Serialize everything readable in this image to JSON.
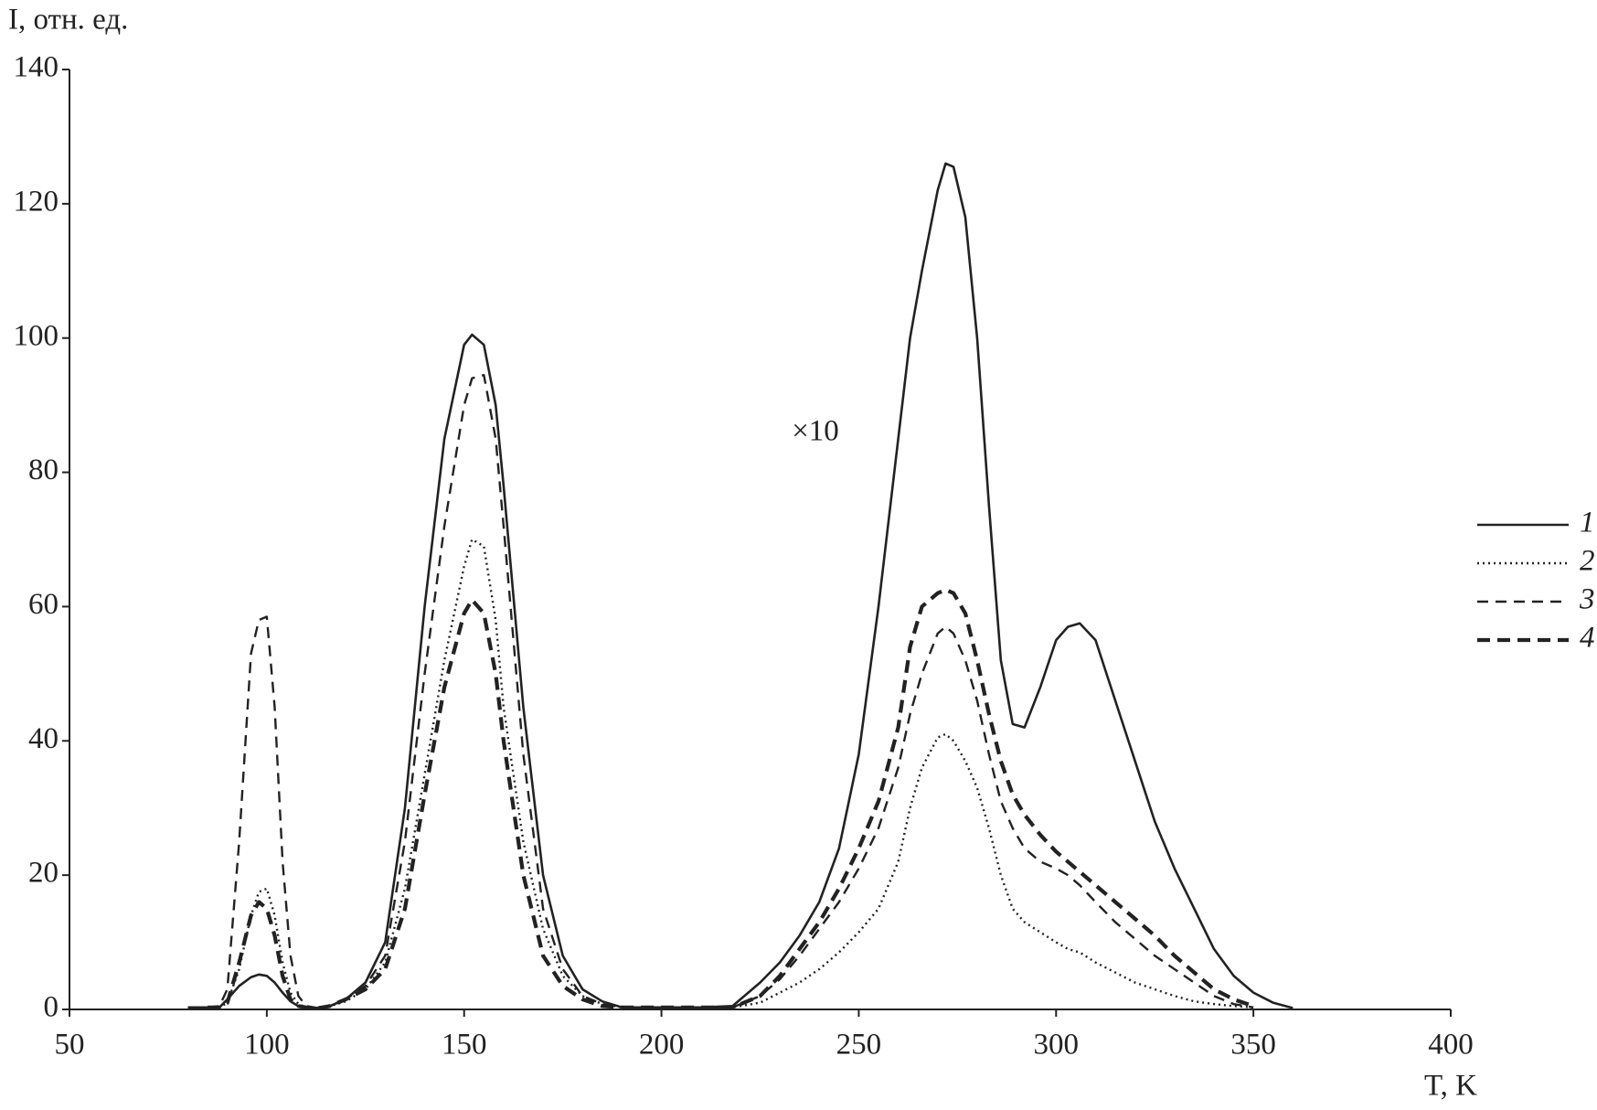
{
  "chart_data": {
    "type": "line",
    "ylabel": "I, отн. ед.",
    "xlabel": "T, K",
    "annotation": "×10",
    "xlim": [
      50,
      400
    ],
    "ylim": [
      0,
      140
    ],
    "xticks": [
      50,
      100,
      150,
      200,
      250,
      300,
      350,
      400
    ],
    "yticks": [
      0,
      20,
      40,
      60,
      80,
      100,
      120,
      140
    ],
    "grid": false,
    "legend": "right",
    "x": [
      80,
      85,
      88,
      90,
      93,
      96,
      98,
      100,
      102,
      104,
      106,
      108,
      110,
      113,
      116,
      120,
      125,
      130,
      135,
      140,
      145,
      150,
      152,
      155,
      158,
      160,
      165,
      170,
      175,
      180,
      185,
      190,
      200,
      210,
      218,
      225,
      230,
      235,
      240,
      245,
      250,
      255,
      260,
      263,
      266,
      270,
      272,
      274,
      277,
      280,
      283,
      286,
      289,
      292,
      296,
      300,
      303,
      306,
      310,
      315,
      320,
      325,
      330,
      335,
      340,
      345,
      350,
      355,
      360
    ],
    "series": [
      {
        "name": "1",
        "color": "#222222",
        "style": "solid",
        "width": 2.6,
        "values": [
          0.3,
          0.3,
          0.3,
          1.5,
          3.5,
          4.8,
          5.2,
          5,
          4,
          2.5,
          1.2,
          0.5,
          0.3,
          0.2,
          0.5,
          1.5,
          4,
          10,
          30,
          60,
          85,
          99,
          100.5,
          99,
          90,
          78,
          45,
          20,
          8,
          3,
          1.2,
          0.3,
          0.3,
          0.3,
          0.5,
          4,
          7,
          11,
          16,
          24,
          38,
          60,
          85,
          100,
          110,
          122,
          126,
          125.5,
          118,
          100,
          75,
          52,
          42.5,
          42,
          48,
          55,
          57,
          57.5,
          55,
          46,
          37,
          28,
          21,
          15,
          9,
          5,
          2.5,
          1,
          0.2
        ]
      },
      {
        "name": "2",
        "color": "#222222",
        "style": "dotted",
        "width": 2.4,
        "values": [
          null,
          0.3,
          0.3,
          1,
          6,
          14,
          17.5,
          18,
          14,
          7,
          2.5,
          0.8,
          0.3,
          0.2,
          0.5,
          1.2,
          3,
          7,
          18,
          35,
          52,
          66,
          70,
          69,
          58,
          45,
          25,
          12,
          5,
          2,
          0.8,
          0.3,
          0.3,
          0.3,
          0.3,
          1,
          2.5,
          4,
          6,
          8.5,
          11.5,
          15,
          22,
          30,
          36,
          40.5,
          41,
          40,
          37,
          33,
          27,
          20,
          15,
          13,
          11.5,
          10,
          9,
          8.5,
          7,
          5.5,
          4,
          3,
          2,
          1.2,
          0.8,
          0.5,
          0.3,
          null,
          null
        ]
      },
      {
        "name": "3",
        "color": "#222222",
        "style": "dashed",
        "width": 2.4,
        "values": [
          null,
          0.3,
          0.5,
          3,
          25,
          53,
          58,
          58.5,
          45,
          22,
          8,
          2,
          0.5,
          0.2,
          0.5,
          1.5,
          3.5,
          8,
          25,
          50,
          72,
          90,
          94,
          94.5,
          85,
          72,
          38,
          15,
          6,
          2,
          0.8,
          0.3,
          0.3,
          0.3,
          0.3,
          2,
          4.5,
          8,
          12,
          16,
          21,
          27,
          36,
          44,
          50,
          56,
          57,
          56,
          52,
          46,
          38,
          31,
          27,
          24,
          22,
          21,
          20,
          18.5,
          16,
          13,
          10.5,
          8,
          6,
          4,
          2,
          0.8,
          0.3,
          null,
          null
        ]
      },
      {
        "name": "4",
        "color": "#222222",
        "style": "dashed",
        "width": 4.2,
        "values": [
          null,
          0.3,
          0.3,
          1,
          7,
          14,
          16,
          15,
          11,
          5,
          1.5,
          0.5,
          0.3,
          0.2,
          0.5,
          1.5,
          3,
          6,
          15,
          32,
          48,
          59,
          61,
          59,
          50,
          40,
          20,
          8,
          3.5,
          1.5,
          0.5,
          0.3,
          0.3,
          0.3,
          0.3,
          2,
          5,
          9,
          13,
          18,
          24,
          31,
          42,
          54,
          60,
          62,
          62.5,
          62,
          59,
          52,
          44,
          37,
          32,
          29,
          26,
          23.5,
          22,
          20.5,
          18.5,
          16,
          13.5,
          11,
          8,
          5.5,
          3,
          1.5,
          0.5,
          null,
          null
        ]
      }
    ]
  }
}
